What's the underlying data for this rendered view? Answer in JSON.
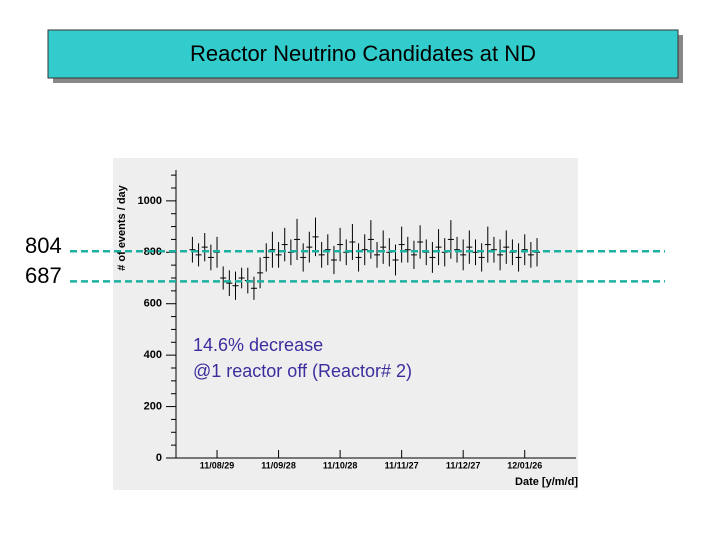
{
  "chart_data": {
    "type": "errorbar",
    "title": "Reactor Neutrino Candidates at ND",
    "x_label": "Date [y/m/d]",
    "y_label": "# of events / day",
    "annotations": [
      "14.6% decrease",
      "@1 reactor off (Reactor# 2)"
    ],
    "reference_lines": [
      804,
      687
    ],
    "color": "#000000",
    "x": [
      "2011-08-17",
      "2011-08-20",
      "2011-08-23",
      "2011-08-26",
      "2011-08-29",
      "2011-09-01",
      "2011-09-04",
      "2011-09-07",
      "2011-09-10",
      "2011-09-13",
      "2011-09-16",
      "2011-09-19",
      "2011-09-22",
      "2011-09-25",
      "2011-09-28",
      "2011-10-01",
      "2011-10-04",
      "2011-10-07",
      "2011-10-10",
      "2011-10-13",
      "2011-10-16",
      "2011-10-19",
      "2011-10-22",
      "2011-10-25",
      "2011-10-28",
      "2011-10-31",
      "2011-11-03",
      "2011-11-06",
      "2011-11-09",
      "2011-11-12",
      "2011-11-15",
      "2011-11-18",
      "2011-11-21",
      "2011-11-24",
      "2011-11-27",
      "2011-11-30",
      "2011-12-03",
      "2011-12-06",
      "2011-12-09",
      "2011-12-12",
      "2011-12-15",
      "2011-12-18",
      "2011-12-21",
      "2011-12-24",
      "2011-12-27",
      "2011-12-30",
      "2012-01-02",
      "2012-01-05",
      "2012-01-08",
      "2012-01-11",
      "2012-01-14",
      "2012-01-17",
      "2012-01-20",
      "2012-01-23",
      "2012-01-26",
      "2012-01-29",
      "2012-02-01"
    ],
    "values": [
      810,
      790,
      820,
      780,
      800,
      700,
      680,
      670,
      700,
      690,
      660,
      720,
      780,
      810,
      790,
      830,
      800,
      850,
      780,
      820,
      860,
      790,
      810,
      770,
      830,
      800,
      840,
      780,
      810,
      850,
      790,
      820,
      800,
      770,
      830,
      810,
      790,
      840,
      800,
      780,
      820,
      800,
      850,
      810,
      790,
      820,
      800,
      780,
      830,
      810,
      790,
      820,
      800,
      780,
      810,
      790,
      800
    ],
    "errors": [
      50,
      45,
      55,
      50,
      60,
      45,
      50,
      55,
      40,
      50,
      45,
      60,
      55,
      70,
      50,
      65,
      50,
      80,
      55,
      60,
      75,
      50,
      60,
      55,
      65,
      50,
      70,
      55,
      60,
      75,
      50,
      65,
      55,
      60,
      70,
      50,
      55,
      65,
      50,
      60,
      70,
      55,
      75,
      50,
      60,
      65,
      50,
      55,
      70,
      50,
      60,
      65,
      50,
      55,
      60,
      50,
      55
    ],
    "xlim": [
      "2011-08-09",
      "2012-02-20"
    ],
    "xticks": [
      {
        "value": "2011-08-29",
        "label": "11/08/29"
      },
      {
        "value": "2011-09-28",
        "label": "11/09/28"
      },
      {
        "value": "2011-10-28",
        "label": "11/10/28"
      },
      {
        "value": "2011-11-27",
        "label": "11/11/27"
      },
      {
        "value": "2011-12-27",
        "label": "11/12/27"
      },
      {
        "value": "2012-01-26",
        "label": "12/01/26"
      }
    ],
    "ylim": [
      0,
      1120
    ],
    "yticks": [
      0,
      200,
      400,
      600,
      800,
      1000
    ]
  }
}
